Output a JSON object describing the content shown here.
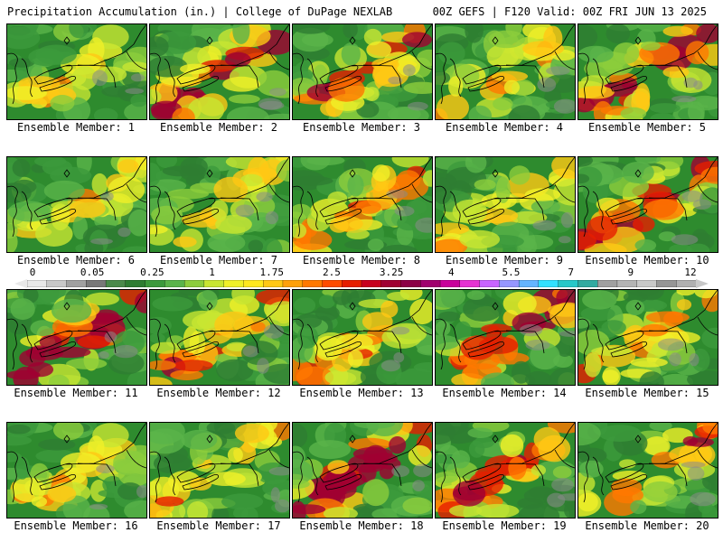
{
  "header": {
    "left": "Precipitation Accumulation (in.) | College of DuPage NEXLAB",
    "right": "00Z GEFS | F120 Valid: 00Z FRI JUN 13 2025"
  },
  "colorbar": {
    "labels": [
      "0",
      "0.05",
      "0.25",
      "1",
      "1.75",
      "2.5",
      "3.25",
      "4",
      "5.5",
      "7",
      "9",
      "12"
    ],
    "colors": [
      "#e8e8e8",
      "#c8c8c8",
      "#a0a0a0",
      "#787878",
      "#4a8a4a",
      "#2e7d32",
      "#3c9a3c",
      "#5ab44a",
      "#8ccd3c",
      "#c8e632",
      "#f0f028",
      "#ffe81e",
      "#ffc814",
      "#ffa00a",
      "#ff7800",
      "#ff4b00",
      "#e61e00",
      "#c8001e",
      "#a00032",
      "#8c0046",
      "#a0006e",
      "#c8009b",
      "#e632d2",
      "#c864ff",
      "#9696ff",
      "#64b4ff",
      "#32e1ff",
      "#28c8c8",
      "#32aaa0",
      "#a0a0a0",
      "#b4b4b4",
      "#c8c8c8",
      "#969696",
      "#b0b0b0"
    ]
  },
  "members": [
    {
      "label": "Ensemble Member: 1",
      "intensity": 0.45
    },
    {
      "label": "Ensemble Member: 2",
      "intensity": 0.7
    },
    {
      "label": "Ensemble Member: 3",
      "intensity": 0.6
    },
    {
      "label": "Ensemble Member: 4",
      "intensity": 0.45
    },
    {
      "label": "Ensemble Member: 5",
      "intensity": 0.75
    },
    {
      "label": "Ensemble Member: 6",
      "intensity": 0.35
    },
    {
      "label": "Ensemble Member: 7",
      "intensity": 0.35
    },
    {
      "label": "Ensemble Member: 8",
      "intensity": 0.5
    },
    {
      "label": "Ensemble Member: 9",
      "intensity": 0.45
    },
    {
      "label": "Ensemble Member: 10",
      "intensity": 0.7
    },
    {
      "label": "Ensemble Member: 11",
      "intensity": 0.85
    },
    {
      "label": "Ensemble Member: 12",
      "intensity": 0.55
    },
    {
      "label": "Ensemble Member: 13",
      "intensity": 0.5
    },
    {
      "label": "Ensemble Member: 14",
      "intensity": 0.7
    },
    {
      "label": "Ensemble Member: 15",
      "intensity": 0.5
    },
    {
      "label": "Ensemble Member: 16",
      "intensity": 0.45
    },
    {
      "label": "Ensemble Member: 17",
      "intensity": 0.45
    },
    {
      "label": "Ensemble Member: 18",
      "intensity": 0.8
    },
    {
      "label": "Ensemble Member: 19",
      "intensity": 0.55
    },
    {
      "label": "Ensemble Member: 20",
      "intensity": 0.55
    }
  ]
}
